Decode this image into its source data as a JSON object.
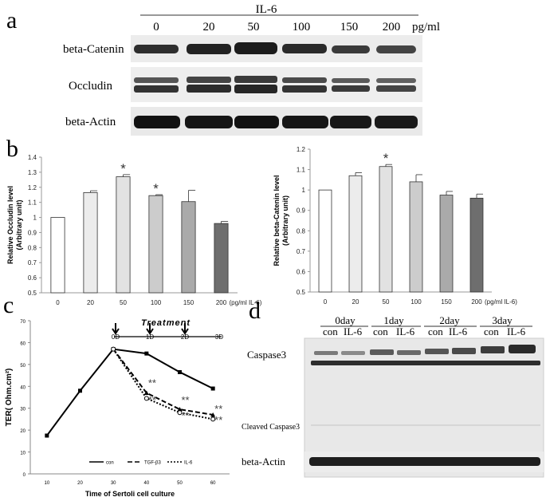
{
  "panel_a": {
    "letter": "a",
    "header": "IL-6",
    "doses": [
      "0",
      "20",
      "50",
      "100",
      "150",
      "200"
    ],
    "unit": "pg/ml",
    "rows": [
      "beta-Catenin",
      "Occludin",
      "beta-Actin"
    ]
  },
  "panel_b": {
    "letter": "b"
  },
  "panel_c": {
    "letter": "c",
    "treatment_label": "Treatment",
    "day_marks": [
      "0D",
      "1D",
      "2D",
      "3D"
    ]
  },
  "panel_d": {
    "letter": "d",
    "days": [
      "0day",
      "1day",
      "2day",
      "3day"
    ],
    "lane_labels": [
      "con",
      "IL-6",
      "con",
      "IL-6",
      "con",
      "IL-6",
      "con",
      "IL-6"
    ],
    "rows": [
      "Caspase3",
      "Cleaved Caspase3",
      "beta-Actin"
    ]
  },
  "chart_data": [
    {
      "id": "occludin",
      "type": "bar",
      "categories": [
        "0",
        "20",
        "50",
        "100",
        "150",
        "200"
      ],
      "values": [
        1.0,
        1.165,
        1.27,
        1.145,
        1.105,
        0.96
      ],
      "errors": [
        0,
        0.012,
        0.014,
        0.006,
        0.075,
        0.014
      ],
      "significant": [
        false,
        false,
        true,
        true,
        false,
        false
      ],
      "ylabel": "Relative Occludin level\n(Arbitrary unit)",
      "xunit": "(pg/ml IL-6)",
      "ylim": [
        0.5,
        1.4
      ],
      "yticks": [
        "0.5",
        "0.6",
        "0.7",
        "0.8",
        "0.9",
        "1",
        "1.1",
        "1.2",
        "1.3",
        "1.4"
      ],
      "significance_mark": "*",
      "bar_colors": [
        "#ffffff",
        "#ececec",
        "#e2e2e2",
        "#cccccc",
        "#aaaaaa",
        "#6e6e6e"
      ],
      "grid": false
    },
    {
      "id": "beta_catenin",
      "type": "bar",
      "categories": [
        "0",
        "20",
        "50",
        "100",
        "150",
        "200"
      ],
      "values": [
        1.0,
        1.07,
        1.115,
        1.04,
        0.975,
        0.96
      ],
      "errors": [
        0,
        0.015,
        0.01,
        0.035,
        0.018,
        0.02
      ],
      "significant": [
        false,
        false,
        true,
        false,
        false,
        false
      ],
      "ylabel": "Relative beta-Catenin level\n(Arbitrary unit)",
      "xunit": "(pg/ml IL-6)",
      "ylim": [
        0.5,
        1.2
      ],
      "yticks": [
        "0.5",
        "0.6",
        "0.7",
        "0.8",
        "0.9",
        "1",
        "1.1",
        "1.2"
      ],
      "significance_mark": "*",
      "bar_colors": [
        "#ffffff",
        "#ececec",
        "#e2e2e2",
        "#cccccc",
        "#aaaaaa",
        "#6e6e6e"
      ],
      "grid": false
    },
    {
      "id": "ter",
      "type": "line",
      "x": [
        10,
        20,
        30,
        40,
        50,
        60
      ],
      "xticks": [
        "10",
        "20",
        "30",
        "40",
        "50",
        "60"
      ],
      "series": [
        {
          "name": "con",
          "x": [
            10,
            20,
            30,
            40,
            50,
            60
          ],
          "values": [
            17.5,
            38,
            57,
            55,
            46.5,
            39
          ],
          "color": "#000000",
          "dash": "",
          "marker": "square"
        },
        {
          "name": "TGF-β3",
          "x": [
            30,
            40,
            50,
            60
          ],
          "values": [
            57,
            37,
            29.5,
            27
          ],
          "color": "#000000",
          "dash": "6,3",
          "marker": "triangle"
        },
        {
          "name": "IL-6",
          "x": [
            30,
            40,
            50,
            60
          ],
          "values": [
            57,
            34.5,
            28,
            25
          ],
          "color": "#000000",
          "dash": "2,2",
          "marker": "circle"
        }
      ],
      "significance_marks": [
        "**",
        "**",
        "**",
        "**",
        "**",
        "**"
      ],
      "ylabel": "TER( Ohm.cm²)",
      "xlabel": "Time of Sertoli cell culture",
      "ylim": [
        0,
        70
      ],
      "yticks": [
        "0",
        "10",
        "20",
        "30",
        "40",
        "50",
        "60",
        "70"
      ],
      "legend_position": "bottom",
      "grid": false
    }
  ]
}
